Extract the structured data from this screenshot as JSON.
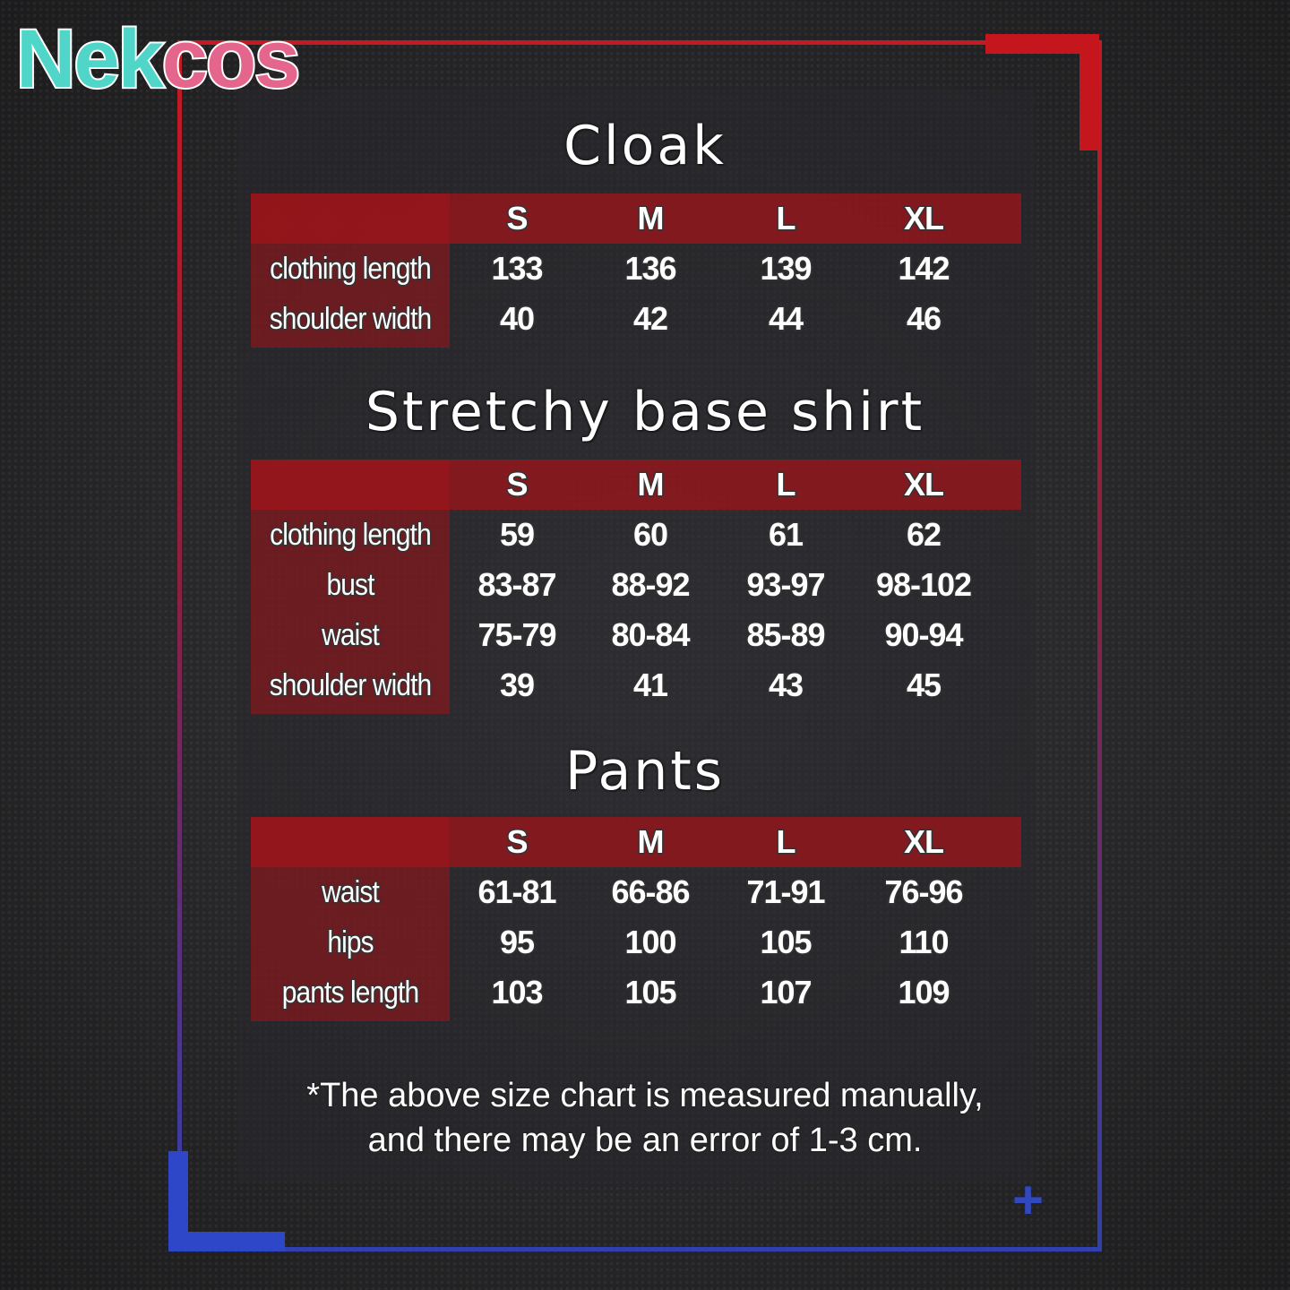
{
  "logo": {
    "text_teal": "Nek",
    "text_pink": "cos",
    "paw": "paw-icon",
    "cat": "cat-face-icon",
    "colors": {
      "teal": "#4fd6c8",
      "pink": "#e5668c"
    }
  },
  "sizes": [
    "S",
    "M",
    "L",
    "XL"
  ],
  "tables": [
    {
      "title": "Cloak",
      "rows": [
        {
          "label": "clothing length",
          "values": [
            "133",
            "136",
            "139",
            "142"
          ]
        },
        {
          "label": "shoulder width",
          "values": [
            "40",
            "42",
            "44",
            "46"
          ]
        }
      ]
    },
    {
      "title": "Stretchy base shirt",
      "rows": [
        {
          "label": "clothing length",
          "values": [
            "59",
            "60",
            "61",
            "62"
          ]
        },
        {
          "label": "bust",
          "values": [
            "83-87",
            "88-92",
            "93-97",
            "98-102"
          ]
        },
        {
          "label": "waist",
          "values": [
            "75-79",
            "80-84",
            "85-89",
            "90-94"
          ]
        },
        {
          "label": "shoulder width",
          "values": [
            "39",
            "41",
            "43",
            "45"
          ]
        }
      ]
    },
    {
      "title": "Pants",
      "rows": [
        {
          "label": "waist",
          "values": [
            "61-81",
            "66-86",
            "71-91",
            "76-96"
          ]
        },
        {
          "label": "hips",
          "values": [
            "95",
            "100",
            "105",
            "110"
          ]
        },
        {
          "label": "pants length",
          "values": [
            "103",
            "105",
            "107",
            "109"
          ]
        }
      ]
    }
  ],
  "note": {
    "line1": "*The above size chart is measured manually,",
    "line2": "and there may be an error of 1-3 cm."
  },
  "colors": {
    "header": "#a0141a",
    "frame_top": "#c41a22",
    "frame_bottom": "#3040b0"
  }
}
